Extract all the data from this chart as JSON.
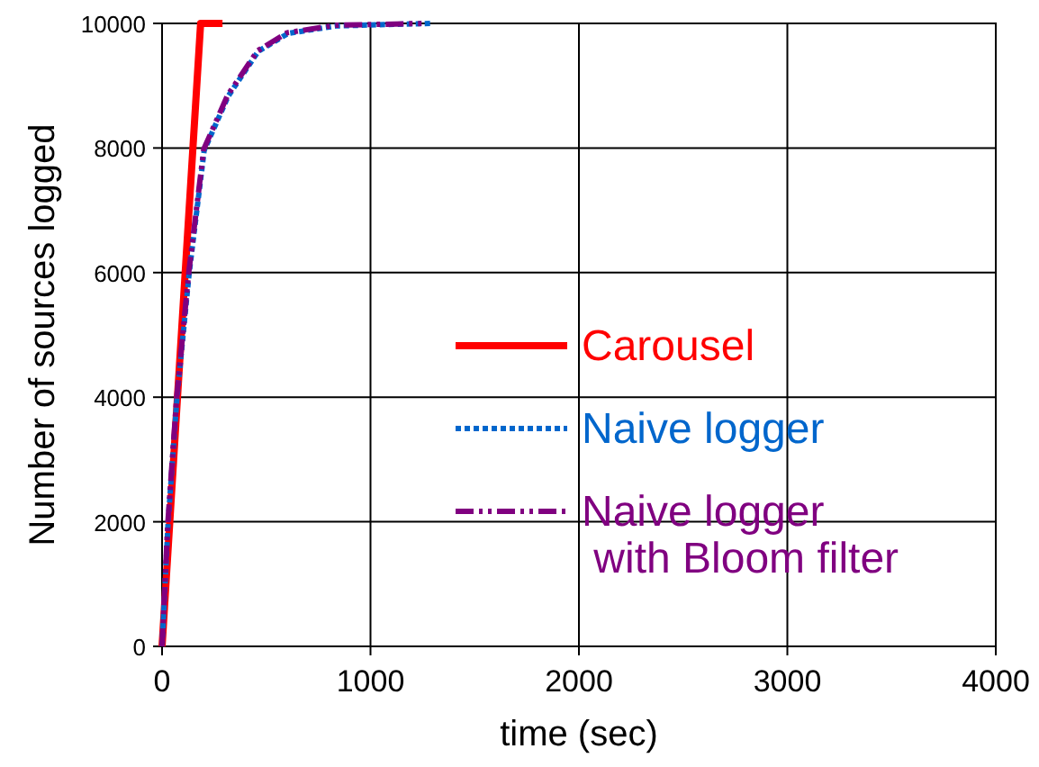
{
  "chart_data": {
    "type": "line",
    "xlabel": "time (sec)",
    "ylabel": "Number of sources logged",
    "xlim": [
      0,
      4000
    ],
    "ylim": [
      0,
      10000
    ],
    "xticks": [
      0,
      1000,
      2000,
      3000,
      4000
    ],
    "yticks": [
      0,
      2000,
      4000,
      6000,
      8000,
      10000
    ],
    "grid": true,
    "legend": "right",
    "series": [
      {
        "name": "Carousel",
        "color": "#ff0000",
        "line_style": "solid",
        "x": [
          0,
          185,
          290
        ],
        "values": [
          0,
          10000,
          10000
        ]
      },
      {
        "name": "Naive logger",
        "color": "#0066cc",
        "line_style": "dotted",
        "x": [
          0,
          29,
          72,
          130,
          202,
          317,
          461,
          605,
          836,
          1290
        ],
        "values": [
          0,
          1990,
          4010,
          5990,
          7960,
          8830,
          9550,
          9840,
          9960,
          10000
        ]
      },
      {
        "name": "Naive logger\n with Bloom filter",
        "color": "#800080",
        "line_style": "dashdot",
        "x": [
          0,
          27,
          70,
          128,
          200,
          315,
          458,
          600,
          830,
          1260
        ],
        "values": [
          0,
          1950,
          3990,
          6000,
          7980,
          8850,
          9560,
          9850,
          9970,
          10000
        ]
      }
    ]
  }
}
